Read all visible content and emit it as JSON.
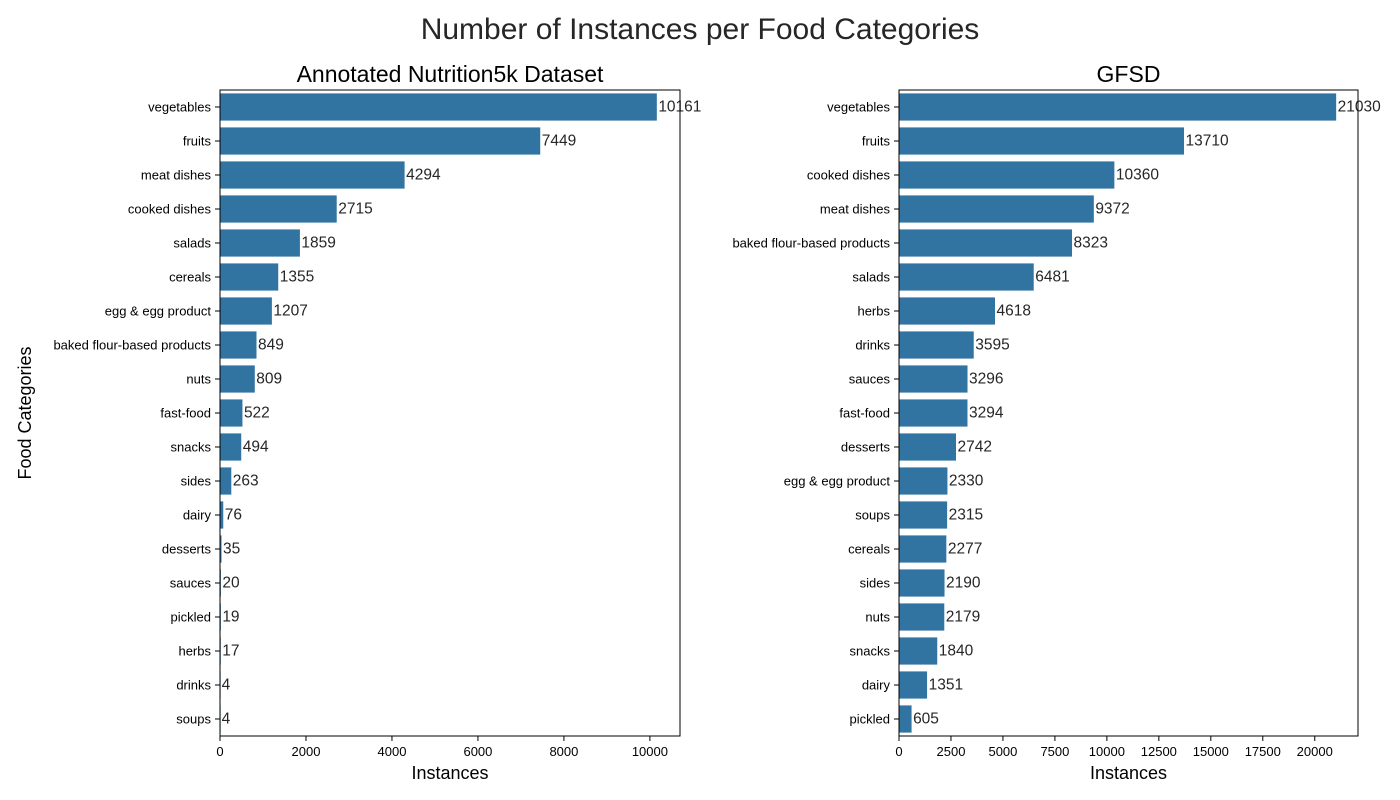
{
  "figure_title": "Number of Instances per Food Categories",
  "colors": {
    "bar": "#3274a1",
    "axis": "#000000",
    "text": "#262626"
  },
  "chart_data": [
    {
      "type": "bar",
      "orientation": "horizontal",
      "title": "Annotated Nutrition5k Dataset",
      "xlabel": "Instances",
      "ylabel": "Food Categories",
      "xlim": [
        0,
        10700
      ],
      "xticks": [
        0,
        2000,
        4000,
        6000,
        8000,
        10000
      ],
      "grid": false,
      "categories": [
        "vegetables",
        "fruits",
        "meat dishes",
        "cooked dishes",
        "salads",
        "cereals",
        "egg & egg product",
        "baked flour-based products",
        "nuts",
        "fast-food",
        "snacks",
        "sides",
        "dairy",
        "desserts",
        "sauces",
        "pickled",
        "herbs",
        "drinks",
        "soups"
      ],
      "values": [
        10161,
        7449,
        4294,
        2715,
        1859,
        1355,
        1207,
        849,
        809,
        522,
        494,
        263,
        76,
        35,
        20,
        19,
        17,
        4,
        4
      ]
    },
    {
      "type": "bar",
      "orientation": "horizontal",
      "title": "GFSD",
      "xlabel": "Instances",
      "ylabel": "",
      "xlim": [
        0,
        22080
      ],
      "xticks": [
        0,
        2500,
        5000,
        7500,
        10000,
        12500,
        15000,
        17500,
        20000
      ],
      "grid": false,
      "categories": [
        "vegetables",
        "fruits",
        "cooked dishes",
        "meat dishes",
        "baked flour-based products",
        "salads",
        "herbs",
        "drinks",
        "sauces",
        "fast-food",
        "desserts",
        "egg & egg product",
        "soups",
        "cereals",
        "sides",
        "nuts",
        "snacks",
        "dairy",
        "pickled"
      ],
      "values": [
        21030,
        13710,
        10360,
        9372,
        8323,
        6481,
        4618,
        3595,
        3296,
        3294,
        2742,
        2330,
        2315,
        2277,
        2190,
        2179,
        1840,
        1351,
        605
      ]
    }
  ]
}
